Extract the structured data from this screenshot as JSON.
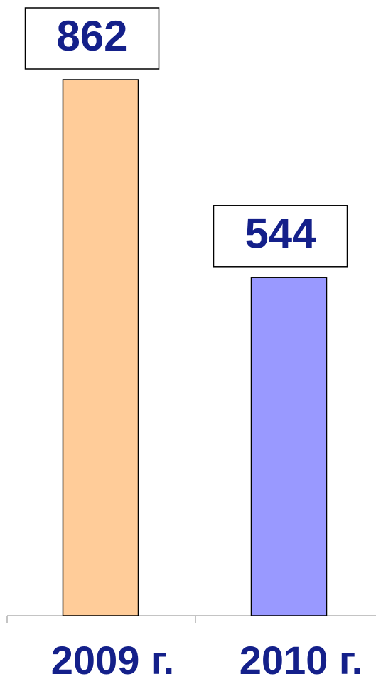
{
  "chart_data": {
    "type": "bar",
    "categories": [
      "2009 г.",
      "2010 г."
    ],
    "values": [
      862,
      544
    ],
    "colors": [
      "#ffcc99",
      "#9999ff"
    ]
  }
}
